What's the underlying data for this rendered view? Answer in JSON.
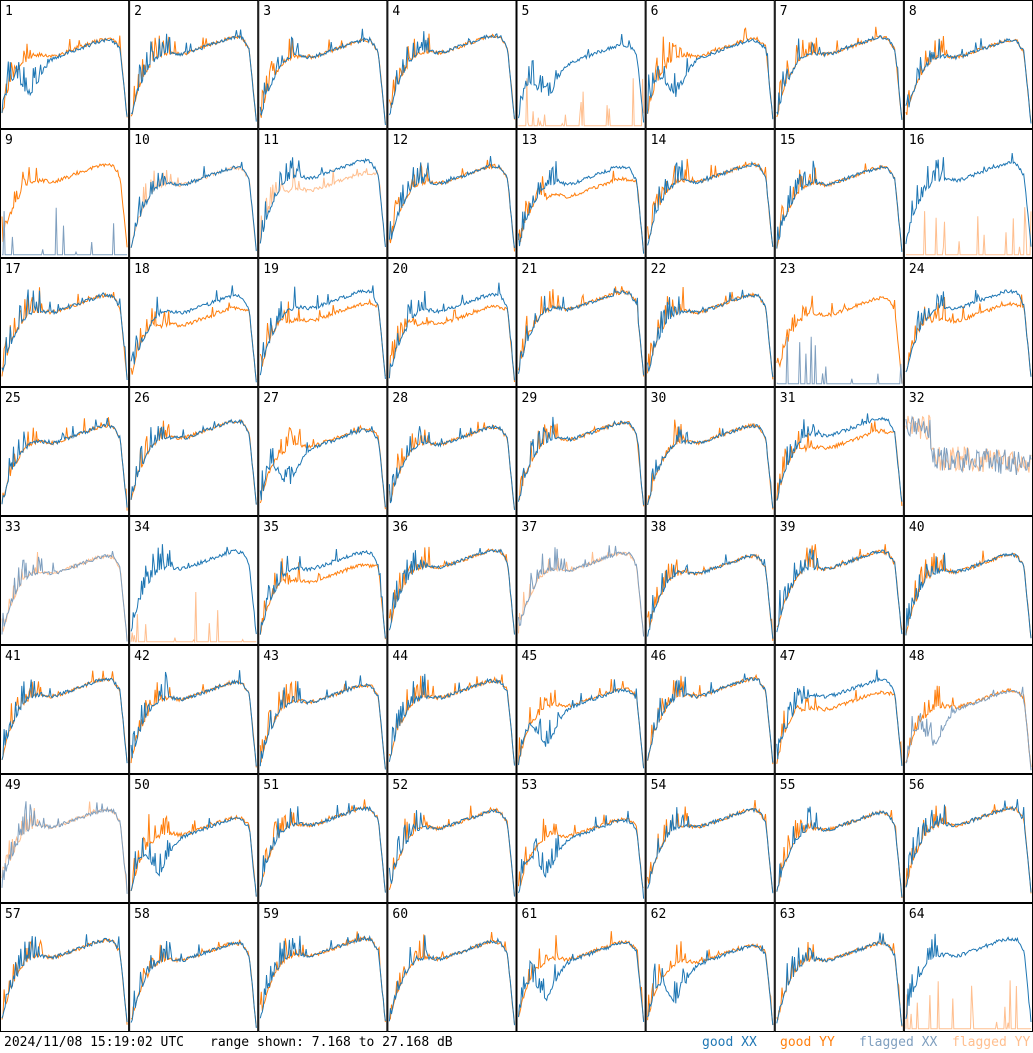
{
  "footer": {
    "timestamp": "2024/11/08 15:19:02 UTC",
    "range_text": "range shown: 7.168 to 27.168 dB"
  },
  "legend": [
    {
      "label": "good XX",
      "color": "#1f77b4"
    },
    {
      "label": "good YY",
      "color": "#ff7f0e"
    },
    {
      "label": "flagged XX",
      "color": "#7f9fbf"
    },
    {
      "label": "flagged YY",
      "color": "#ffbf8f"
    }
  ],
  "chart_data": {
    "type": "line",
    "grid_rows": 8,
    "grid_cols": 8,
    "range_db": [
      7.168,
      27.168
    ],
    "panels": [
      {
        "id": "1",
        "xx": "good",
        "yy": "good",
        "shape": "dip"
      },
      {
        "id": "2",
        "xx": "good",
        "yy": "good",
        "shape": "bowl"
      },
      {
        "id": "3",
        "xx": "good",
        "yy": "good",
        "shape": "bowl"
      },
      {
        "id": "4",
        "xx": "good",
        "yy": "good",
        "shape": "bowl"
      },
      {
        "id": "5",
        "xx": "good",
        "yy": "flagged",
        "shape": "dip"
      },
      {
        "id": "6",
        "xx": "good",
        "yy": "good",
        "shape": "dip"
      },
      {
        "id": "7",
        "xx": "good",
        "yy": "good",
        "shape": "bowl"
      },
      {
        "id": "8",
        "xx": "good",
        "yy": "good",
        "shape": "bowl"
      },
      {
        "id": "9",
        "xx": "flagged",
        "yy": "good",
        "shape": "bowl"
      },
      {
        "id": "10",
        "xx": "good",
        "yy": "flagged",
        "shape": "bowl"
      },
      {
        "id": "11",
        "xx": "good",
        "yy": "flagged",
        "shape": "split"
      },
      {
        "id": "12",
        "xx": "good",
        "yy": "good",
        "shape": "bowl"
      },
      {
        "id": "13",
        "xx": "good",
        "yy": "good",
        "shape": "split"
      },
      {
        "id": "14",
        "xx": "good",
        "yy": "good",
        "shape": "bowl"
      },
      {
        "id": "15",
        "xx": "good",
        "yy": "good",
        "shape": "bowl"
      },
      {
        "id": "16",
        "xx": "good",
        "yy": "flagged",
        "shape": "bowl"
      },
      {
        "id": "17",
        "xx": "good",
        "yy": "good",
        "shape": "bowl"
      },
      {
        "id": "18",
        "xx": "good",
        "yy": "good",
        "shape": "split"
      },
      {
        "id": "19",
        "xx": "good",
        "yy": "good",
        "shape": "split"
      },
      {
        "id": "20",
        "xx": "good",
        "yy": "good",
        "shape": "split"
      },
      {
        "id": "21",
        "xx": "good",
        "yy": "good",
        "shape": "bowl"
      },
      {
        "id": "22",
        "xx": "good",
        "yy": "good",
        "shape": "bowl"
      },
      {
        "id": "23",
        "xx": "flagged",
        "yy": "good",
        "shape": "bowl"
      },
      {
        "id": "24",
        "xx": "good",
        "yy": "good",
        "shape": "split"
      },
      {
        "id": "25",
        "xx": "good",
        "yy": "good",
        "shape": "bowl"
      },
      {
        "id": "26",
        "xx": "good",
        "yy": "good",
        "shape": "bowl"
      },
      {
        "id": "27",
        "xx": "good",
        "yy": "good",
        "shape": "dip"
      },
      {
        "id": "28",
        "xx": "good",
        "yy": "good",
        "shape": "bowl"
      },
      {
        "id": "29",
        "xx": "good",
        "yy": "good",
        "shape": "bowl"
      },
      {
        "id": "30",
        "xx": "good",
        "yy": "good",
        "shape": "bowl"
      },
      {
        "id": "31",
        "xx": "good",
        "yy": "good",
        "shape": "split"
      },
      {
        "id": "32",
        "xx": "flagged",
        "yy": "flagged",
        "shape": "noisy"
      },
      {
        "id": "33",
        "xx": "flagged",
        "yy": "flagged",
        "shape": "bowl"
      },
      {
        "id": "34",
        "xx": "good",
        "yy": "flagged",
        "shape": "bowl"
      },
      {
        "id": "35",
        "xx": "good",
        "yy": "good",
        "shape": "split"
      },
      {
        "id": "36",
        "xx": "good",
        "yy": "good",
        "shape": "bowl"
      },
      {
        "id": "37",
        "xx": "flagged",
        "yy": "flagged",
        "shape": "bowl"
      },
      {
        "id": "38",
        "xx": "good",
        "yy": "good",
        "shape": "bowl"
      },
      {
        "id": "39",
        "xx": "good",
        "yy": "good",
        "shape": "bowl"
      },
      {
        "id": "40",
        "xx": "good",
        "yy": "good",
        "shape": "bowl"
      },
      {
        "id": "41",
        "xx": "good",
        "yy": "good",
        "shape": "bowl"
      },
      {
        "id": "42",
        "xx": "good",
        "yy": "good",
        "shape": "bowl"
      },
      {
        "id": "43",
        "xx": "good",
        "yy": "good",
        "shape": "bowl"
      },
      {
        "id": "44",
        "xx": "good",
        "yy": "good",
        "shape": "bowl"
      },
      {
        "id": "45",
        "xx": "good",
        "yy": "good",
        "shape": "dip"
      },
      {
        "id": "46",
        "xx": "good",
        "yy": "good",
        "shape": "bowl"
      },
      {
        "id": "47",
        "xx": "good",
        "yy": "good",
        "shape": "split"
      },
      {
        "id": "48",
        "xx": "flagged",
        "yy": "good",
        "shape": "dip"
      },
      {
        "id": "49",
        "xx": "flagged",
        "yy": "flagged",
        "shape": "bowl"
      },
      {
        "id": "50",
        "xx": "good",
        "yy": "good",
        "shape": "dip"
      },
      {
        "id": "51",
        "xx": "good",
        "yy": "good",
        "shape": "bowl"
      },
      {
        "id": "52",
        "xx": "good",
        "yy": "good",
        "shape": "bowl"
      },
      {
        "id": "53",
        "xx": "good",
        "yy": "good",
        "shape": "dip"
      },
      {
        "id": "54",
        "xx": "good",
        "yy": "good",
        "shape": "bowl"
      },
      {
        "id": "55",
        "xx": "good",
        "yy": "good",
        "shape": "bowl"
      },
      {
        "id": "56",
        "xx": "good",
        "yy": "good",
        "shape": "bowl"
      },
      {
        "id": "57",
        "xx": "good",
        "yy": "good",
        "shape": "bowl"
      },
      {
        "id": "58",
        "xx": "good",
        "yy": "good",
        "shape": "bowl"
      },
      {
        "id": "59",
        "xx": "good",
        "yy": "good",
        "shape": "bowl"
      },
      {
        "id": "60",
        "xx": "good",
        "yy": "good",
        "shape": "bowl"
      },
      {
        "id": "61",
        "xx": "good",
        "yy": "good",
        "shape": "dip"
      },
      {
        "id": "62",
        "xx": "good",
        "yy": "good",
        "shape": "dip"
      },
      {
        "id": "63",
        "xx": "good",
        "yy": "good",
        "shape": "bowl"
      },
      {
        "id": "64",
        "xx": "good",
        "yy": "flagged",
        "shape": "bowl"
      }
    ]
  }
}
